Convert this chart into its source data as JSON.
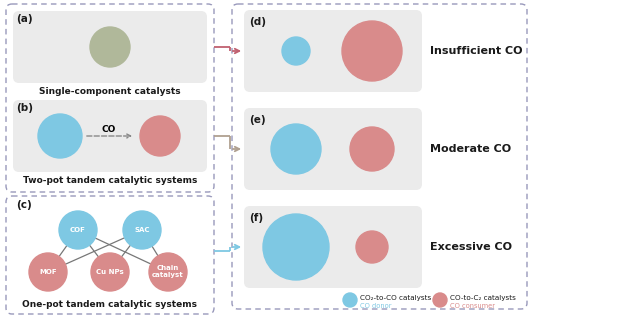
{
  "blue_circle": "#7ec8e3",
  "pink_circle": "#d98b8b",
  "gray_circle": "#b0b89a",
  "panel_bg": "#ebebeb",
  "dashed_border": "#9999bb",
  "text_color": "#1a1a1a",
  "arrow_red": "#c06070",
  "arrow_tan": "#b0a090",
  "arrow_blue": "#7ec8e3",
  "legend_blue_text": "#7ec8e3",
  "legend_pink_text": "#d98b8b",
  "node_labels": {
    "COF": "COF",
    "SAC": "SAC",
    "MOF": "MOF",
    "CuNPs": "Cu NPs",
    "Chain": "Chain\ncatalyst"
  },
  "captions": {
    "a": "Single-component catalysts",
    "b": "Two-pot tandem catalytic systems",
    "c": "One-pot tandem catalytic systems"
  },
  "right_labels": {
    "d": "Insufficient CO",
    "e": "Moderate CO",
    "f": "Excessive CO"
  },
  "legend": {
    "blue_label": "CO₂-to-CO catalysts",
    "pink_label": "CO-to-C₂ catalysts",
    "blue_sub": "CO donor",
    "pink_sub": "CO consumer"
  }
}
